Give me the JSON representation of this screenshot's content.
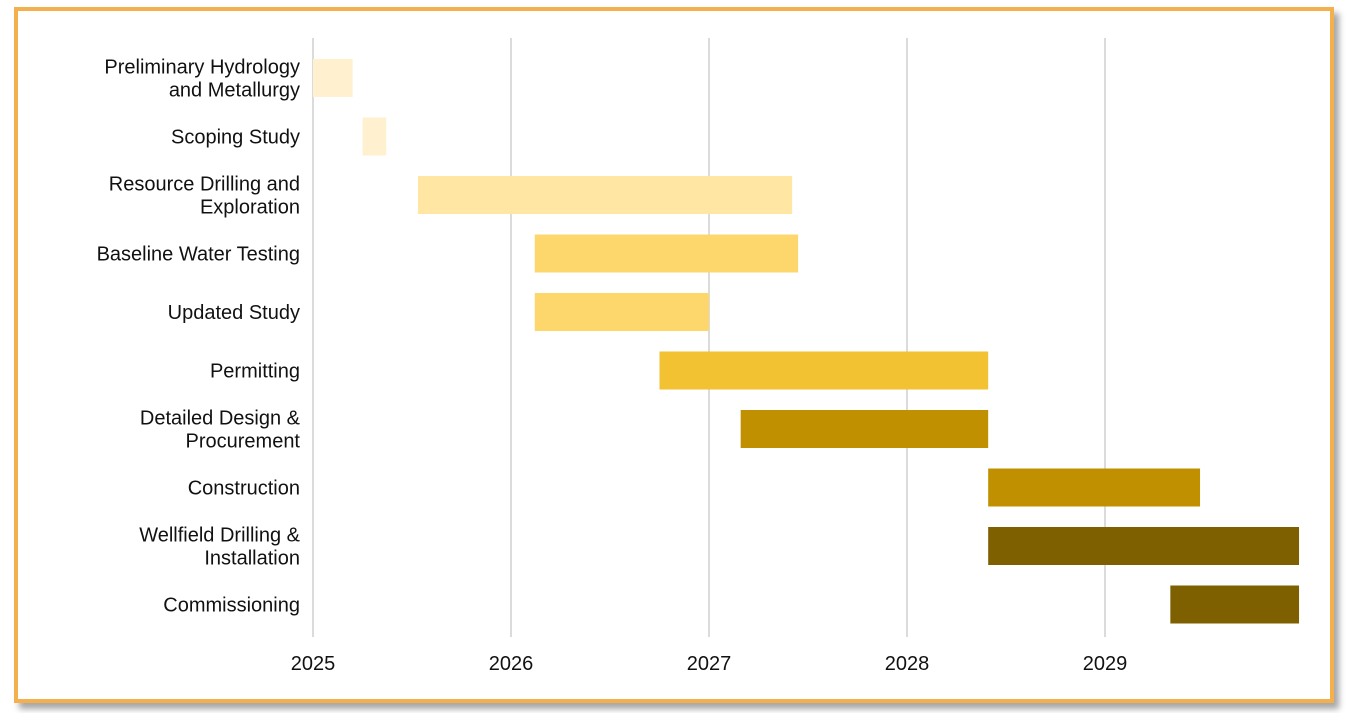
{
  "chart_data": {
    "type": "bar",
    "orientation": "horizontal",
    "gantt": true,
    "x_ticks": [
      "2025",
      "2026",
      "2027",
      "2028",
      "2029"
    ],
    "xlim": [
      2025.0,
      2030.0
    ],
    "grid": true,
    "legend": "none",
    "tasks": [
      {
        "label": "Preliminary Hydrology and Metallurgy",
        "label_lines": [
          "Preliminary Hydrology",
          "and Metallurgy"
        ],
        "start": 2025.0,
        "end": 2025.2,
        "color": "#fff1cf"
      },
      {
        "label": "Scoping Study",
        "label_lines": [
          "Scoping Study"
        ],
        "start": 2025.25,
        "end": 2025.37,
        "color": "#fff1cf"
      },
      {
        "label": "Resource Drilling and Exploration",
        "label_lines": [
          "Resource Drilling and",
          "Exploration"
        ],
        "start": 2025.53,
        "end": 2027.42,
        "color": "#ffe7a3"
      },
      {
        "label": "Baseline Water Testing",
        "label_lines": [
          "Baseline Water Testing"
        ],
        "start": 2026.12,
        "end": 2027.45,
        "color": "#fdd76c"
      },
      {
        "label": "Updated Study",
        "label_lines": [
          "Updated Study"
        ],
        "start": 2026.12,
        "end": 2027.0,
        "color": "#fdd76c"
      },
      {
        "label": "Permitting",
        "label_lines": [
          "Permitting"
        ],
        "start": 2026.75,
        "end": 2028.41,
        "color": "#f2c233"
      },
      {
        "label": "Detailed Design & Procurement",
        "label_lines": [
          "Detailed Design &",
          "Procurement"
        ],
        "start": 2027.16,
        "end": 2028.41,
        "color": "#c09000"
      },
      {
        "label": "Construction",
        "label_lines": [
          "Construction"
        ],
        "start": 2028.41,
        "end": 2029.48,
        "color": "#c09000"
      },
      {
        "label": "Wellfield Drilling & Installation",
        "label_lines": [
          "Wellfield Drilling &",
          "Installation"
        ],
        "start": 2028.41,
        "end": 2029.98,
        "color": "#7f6000"
      },
      {
        "label": "Commissioning",
        "label_lines": [
          "Commissioning"
        ],
        "start": 2029.33,
        "end": 2029.98,
        "color": "#7f6000"
      }
    ],
    "colors": {
      "frame_border": "#f4b04d",
      "gridline": "#cfcfcf"
    }
  }
}
